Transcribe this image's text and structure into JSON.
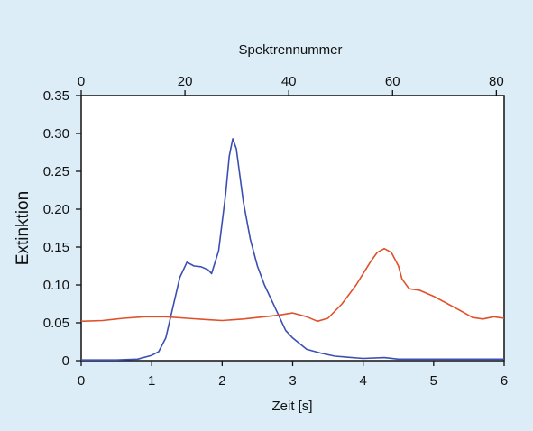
{
  "chart_data": {
    "type": "line",
    "x_axis": {
      "label": "Zeit [s]",
      "range": [
        0,
        6
      ],
      "ticks": [
        0,
        1,
        2,
        3,
        4,
        5,
        6
      ],
      "tick_labels": [
        "0",
        "1",
        "2",
        "3",
        "4",
        "5",
        "6"
      ]
    },
    "x2_axis": {
      "label": "Spektrennummer",
      "range": [
        0,
        81.5
      ],
      "ticks": [
        0,
        20,
        40,
        60,
        80
      ],
      "tick_labels": [
        "0",
        "20",
        "40",
        "60",
        "80"
      ]
    },
    "y_axis": {
      "label": "Extinktion",
      "range": [
        0,
        0.35
      ],
      "ticks": [
        0,
        0.05,
        0.1,
        0.15,
        0.2,
        0.25,
        0.3,
        0.35
      ],
      "tick_labels": [
        "0",
        "0.05",
        "0.10",
        "0.15",
        "0.20",
        "0.25",
        "0.30",
        "0.35"
      ]
    },
    "grid": false,
    "legend": "none",
    "series": [
      {
        "color": "#3b4fb3",
        "x": [
          0,
          0.5,
          0.8,
          1.0,
          1.1,
          1.2,
          1.3,
          1.4,
          1.5,
          1.6,
          1.7,
          1.8,
          1.85,
          1.95,
          2.05,
          2.1,
          2.15,
          2.2,
          2.3,
          2.4,
          2.5,
          2.6,
          2.7,
          2.8,
          2.9,
          3.0,
          3.2,
          3.4,
          3.6,
          4.0,
          4.3,
          4.5,
          5.0,
          6.0
        ],
        "y": [
          0.001,
          0.001,
          0.002,
          0.007,
          0.012,
          0.03,
          0.07,
          0.11,
          0.13,
          0.125,
          0.124,
          0.12,
          0.115,
          0.145,
          0.22,
          0.27,
          0.293,
          0.28,
          0.21,
          0.16,
          0.125,
          0.1,
          0.08,
          0.06,
          0.04,
          0.03,
          0.015,
          0.01,
          0.006,
          0.003,
          0.004,
          0.002,
          0.002,
          0.002
        ]
      },
      {
        "color": "#e0502a",
        "x": [
          0,
          0.3,
          0.6,
          0.9,
          1.2,
          1.5,
          1.8,
          2.0,
          2.3,
          2.6,
          2.8,
          3.0,
          3.2,
          3.35,
          3.5,
          3.7,
          3.9,
          4.1,
          4.2,
          4.3,
          4.4,
          4.5,
          4.55,
          4.65,
          4.8,
          5.0,
          5.2,
          5.4,
          5.55,
          5.7,
          5.85,
          6.0
        ],
        "y": [
          0.052,
          0.053,
          0.056,
          0.058,
          0.058,
          0.056,
          0.054,
          0.053,
          0.055,
          0.058,
          0.06,
          0.063,
          0.058,
          0.052,
          0.056,
          0.075,
          0.1,
          0.13,
          0.143,
          0.148,
          0.143,
          0.125,
          0.108,
          0.095,
          0.093,
          0.085,
          0.075,
          0.065,
          0.057,
          0.055,
          0.058,
          0.056
        ]
      }
    ]
  }
}
